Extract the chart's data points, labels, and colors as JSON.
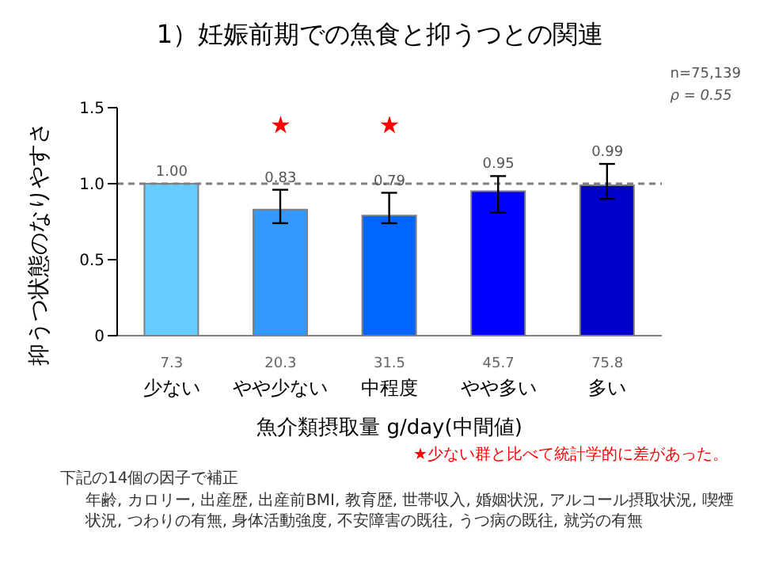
{
  "chart_data": {
    "type": "bar",
    "title": "1）妊娠前期での魚食と抑うつとの関連",
    "categories": [
      "7.3\n少ない",
      "20.3\nやや少ない",
      "31.5\n中程度",
      "45.7\nやや多い",
      "75.8\n多い"
    ],
    "values": [
      1.0,
      0.83,
      0.79,
      0.95,
      0.99
    ],
    "colors": [
      "#66ccff",
      "#3399ff",
      "#0066ff",
      "#0000ff",
      "#0000cc"
    ],
    "value_labels": [
      "1.00",
      "0.83",
      "0.79",
      "0.95",
      "0.99"
    ],
    "errors": [
      null,
      [
        0.74,
        0.96
      ],
      [
        0.74,
        0.94
      ],
      [
        0.81,
        1.05
      ],
      [
        0.9,
        1.13
      ]
    ],
    "xlabel": "魚介類摂取量 g/day(中間値)",
    "ylabel": "抑うつ状態のなりやすさ",
    "ylim": [
      0,
      1.5
    ],
    "yticks": [
      0,
      {
        "value": 0.5,
        "label": "0.5"
      },
      {
        "value": 1,
        "label": "1.0"
      },
      {
        "value": 1.5,
        "label": "1.5"
      }
    ],
    "ref_lines": [
      {
        "axis": "y",
        "value": 1,
        "color": "#808080",
        "line_style": "dashed"
      }
    ],
    "annotations": [
      "★",
      "★",
      "n=75,139",
      "ρ = 0.55",
      "★少ない群と比べて統計学的に差があった。",
      "下記の14個の因子で補正",
      "年齢, カロリー, 出産歴, 出産前BMI, 教育歴, 世帯収入, 婚姻状況, アルコール摂取状況, 喫煙状況, つわりの有無, 身体活動強度, 不安障害の既往, うつ病の既往, 就労の有無"
    ],
    "legend": false
  }
}
